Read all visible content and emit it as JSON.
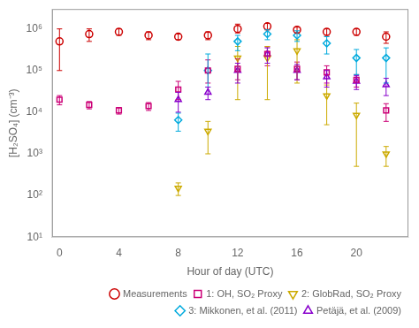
{
  "chart_data": {
    "type": "scatter",
    "x_label": "Hour of day (UTC)",
    "y_label": "[H₂SO₄] (cm⁻³)",
    "xlim": [
      -0.5,
      23.5
    ],
    "ylim": [
      10,
      3000000
    ],
    "xticks": [
      0,
      4,
      8,
      12,
      16,
      20
    ],
    "yticks": [
      {
        "value": 10,
        "label": "10¹"
      },
      {
        "value": 100,
        "label": "10²"
      },
      {
        "value": 1000,
        "label": "10³"
      },
      {
        "value": 10000,
        "label": "10⁴"
      },
      {
        "value": 100000,
        "label": "10⁵"
      },
      {
        "value": 1000000,
        "label": "10⁶"
      }
    ],
    "log": "y",
    "grid": false,
    "legend": "lower right",
    "series": [
      {
        "name": "Measurements",
        "color": "#cc0000",
        "marker": "circle",
        "x": [
          0,
          2,
          4,
          6,
          8,
          10,
          12,
          14,
          16,
          18,
          20,
          22
        ],
        "values": [
          500000.0,
          750000.0,
          850000.0,
          700000.0,
          650000.0,
          700000.0,
          1000000.0,
          1150000.0,
          950000.0,
          850000.0,
          850000.0,
          650000.0
        ],
        "error_low": [
          400000.0,
          250000.0,
          150000.0,
          150000.0,
          100000.0,
          150000.0,
          200000.0,
          200000.0,
          150000.0,
          150000.0,
          150000.0,
          200000.0
        ],
        "error_high": [
          500000.0,
          250000.0,
          150000.0,
          150000.0,
          100000.0,
          150000.0,
          300000.0,
          200000.0,
          150000.0,
          150000.0,
          150000.0,
          200000.0
        ]
      },
      {
        "name": "1: OH, SO₂ Proxy",
        "color": "#cc0077",
        "marker": "square",
        "x": [
          0,
          2,
          4,
          6,
          8,
          10,
          12,
          14,
          16,
          18,
          20,
          22
        ],
        "values": [
          20000.0,
          15000.0,
          11000.0,
          14000.0,
          35000.0,
          100000.0,
          110000.0,
          250000.0,
          110000.0,
          90000.0,
          60000.0,
          11000.0
        ],
        "error_low": [
          5000.0,
          3000.0,
          2000.0,
          3000.0,
          15000.0,
          50000.0,
          50000.0,
          120000.0,
          50000.0,
          40000.0,
          20000.0,
          5000.0
        ],
        "error_high": [
          5000.0,
          3000.0,
          2000.0,
          3000.0,
          20000.0,
          80000.0,
          80000.0,
          120000.0,
          50000.0,
          40000.0,
          20000.0,
          5000.0
        ]
      },
      {
        "name": "2: GlobRad, SO₂ Proxy",
        "color": "#ccaa00",
        "marker": "triangle_down",
        "x": [
          8,
          10,
          12,
          14,
          16,
          18,
          20,
          22
        ],
        "values": [
          150,
          3500,
          200000.0,
          200000.0,
          300000.0,
          25000.0,
          8500,
          1000
        ],
        "error_low": [
          50,
          2500,
          180000.0,
          180000.0,
          250000.0,
          20000.0,
          8000,
          500
        ],
        "error_high": [
          50,
          2500,
          180000.0,
          180000.0,
          250000.0,
          20000.0,
          8000,
          500
        ]
      },
      {
        "name": "3: Mikkonen, et al. (2011)",
        "color": "#00aadd",
        "marker": "diamond",
        "x": [
          8,
          10,
          12,
          14,
          16,
          18,
          20,
          22
        ],
        "values": [
          6500,
          100000.0,
          500000.0,
          750000.0,
          700000.0,
          450000.0,
          200000.0,
          200000.0
        ],
        "error_low": [
          3000,
          60000.0,
          200000.0,
          200000.0,
          200000.0,
          200000.0,
          120000.0,
          150000.0
        ],
        "error_high": [
          3000,
          150000.0,
          200000.0,
          200000.0,
          200000.0,
          200000.0,
          120000.0,
          150000.0
        ]
      },
      {
        "name": "Petäjä, et al. (2009)",
        "color": "#8800cc",
        "marker": "triangle_up",
        "x": [
          8,
          10,
          12,
          14,
          16,
          18,
          20,
          22
        ],
        "values": [
          20000.0,
          30000.0,
          100000.0,
          250000.0,
          100000.0,
          70000.0,
          55000.0,
          45000.0
        ],
        "error_low": [
          10000.0,
          10000.0,
          50000.0,
          100000.0,
          40000.0,
          30000.0,
          20000.0,
          20000.0
        ],
        "error_high": [
          10000.0,
          10000.0,
          50000.0,
          100000.0,
          40000.0,
          30000.0,
          20000.0,
          20000.0
        ]
      }
    ]
  }
}
